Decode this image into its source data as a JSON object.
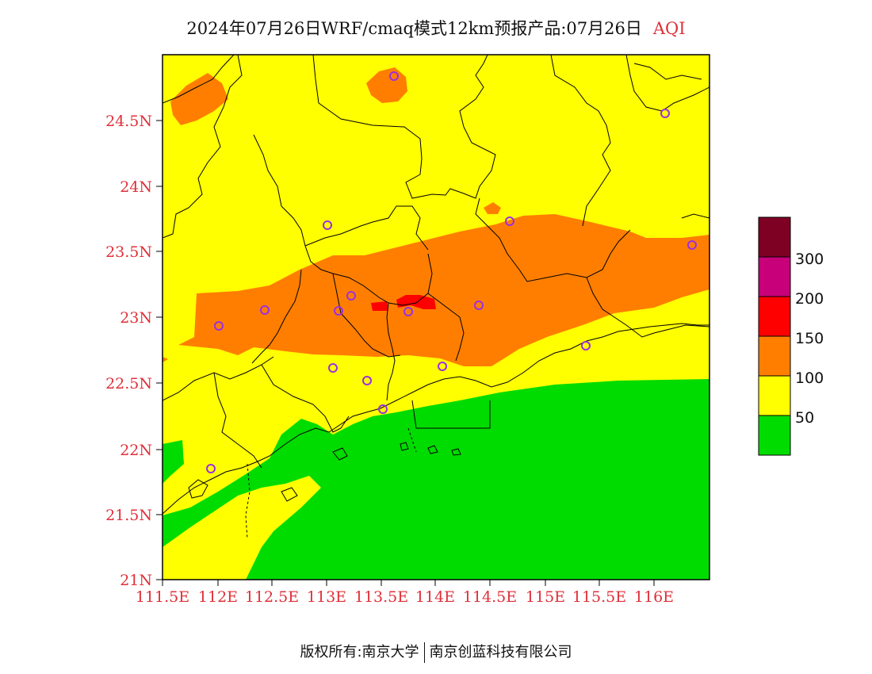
{
  "title": {
    "main": "2024年07月26日WRF/cmaq模式12km预报产品:07月26日",
    "variable": "AQI"
  },
  "axes": {
    "x_ticks": [
      "111.5E",
      "112E",
      "112.5E",
      "113E",
      "113.5E",
      "114E",
      "114.5E",
      "115E",
      "115.5E",
      "116E"
    ],
    "y_ticks": [
      "21N",
      "21.5N",
      "22N",
      "22.5N",
      "23N",
      "23.5N",
      "24N",
      "24.5N"
    ]
  },
  "legend": {
    "labels": [
      "50",
      "100",
      "150",
      "200",
      "300"
    ],
    "colors": [
      "#00dc00",
      "#ffff00",
      "#ff7e00",
      "#ff0000",
      "#c8007a",
      "#7e0023"
    ]
  },
  "colors": {
    "good": "#00dc00",
    "moderate": "#ffff00",
    "usg": "#ff7e00",
    "unhealthy": "#ff0000",
    "station": "#9b30e0",
    "label_red": "#e0303a"
  },
  "footer": {
    "left": "版权所有:南京大学",
    "right": "南京创蓝科技有限公司"
  }
}
